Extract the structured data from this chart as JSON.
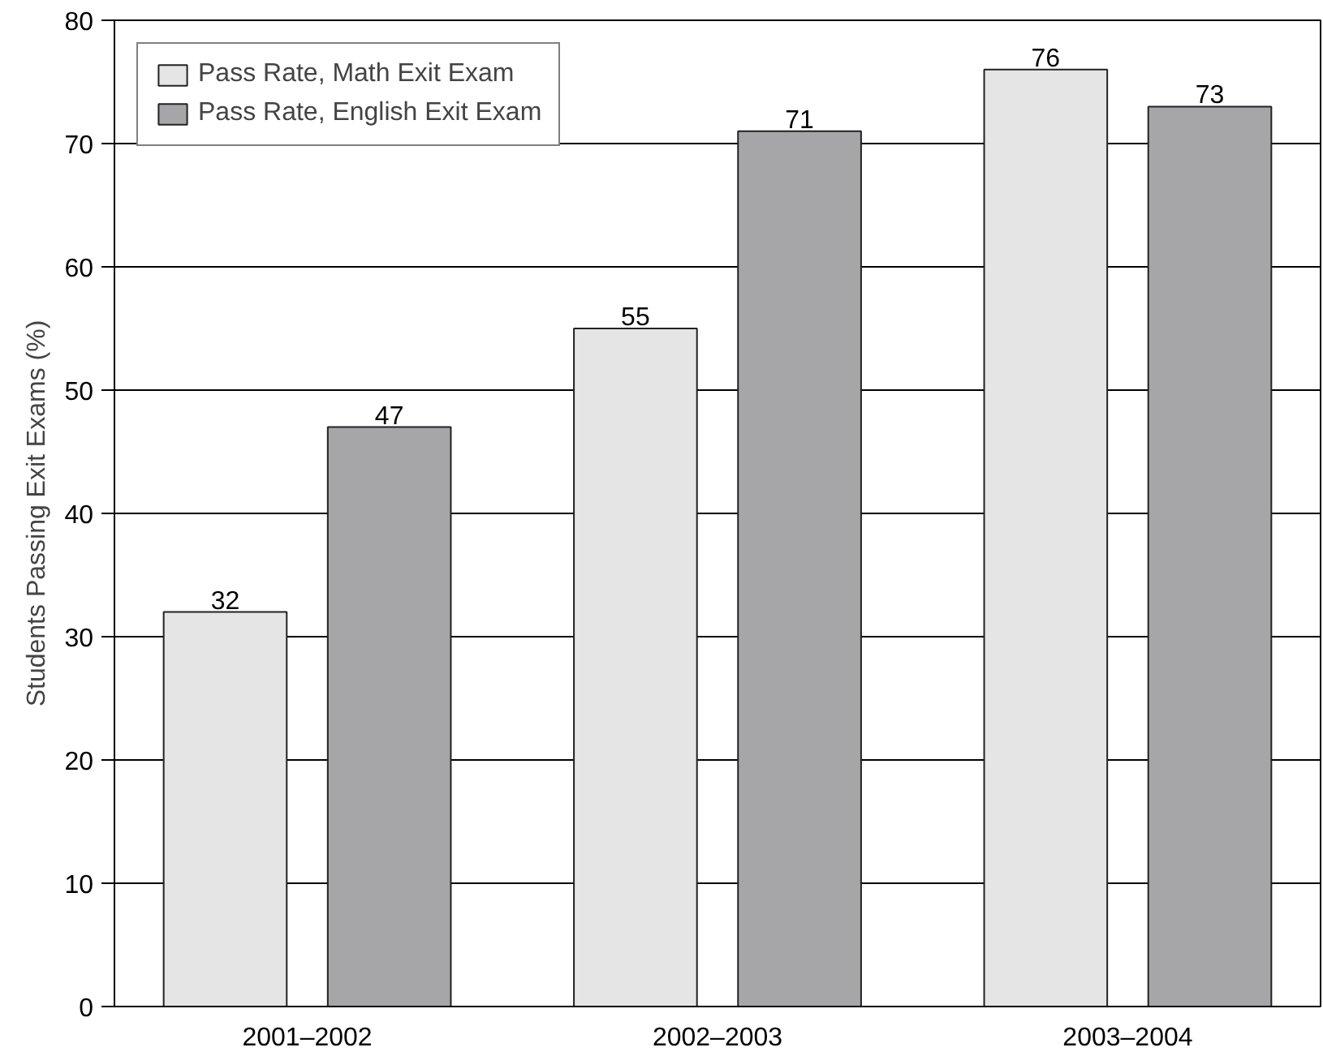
{
  "chart_data": {
    "type": "bar",
    "ylabel": "Students Passing Exit Exams (%)",
    "categories": [
      "2001–2002",
      "2002–2003",
      "2003–2004"
    ],
    "series": [
      {
        "name": "Pass Rate, Math Exit Exam",
        "color": "#e5e5e5",
        "values": [
          32,
          55,
          76
        ]
      },
      {
        "name": "Pass Rate, English Exit Exam",
        "color": "#a6a6a8",
        "values": [
          47,
          71,
          73
        ]
      }
    ],
    "ylim": [
      0,
      80
    ],
    "yticks": [
      0,
      10,
      20,
      30,
      40,
      50,
      60,
      70,
      80
    ],
    "grid": "y",
    "legend": "top left",
    "data_labels": true
  }
}
